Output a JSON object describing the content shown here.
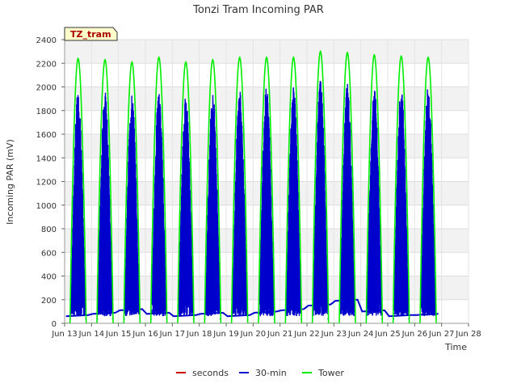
{
  "chart_data": {
    "type": "line",
    "title": "Tonzi Tram Incoming PAR",
    "xlabel": "Time",
    "ylabel": "Incoming PAR (mV)",
    "badge": "TZ_tram",
    "x_ticks": [
      "Jun 13",
      "Jun 14",
      "Jun 15",
      "Jun 16",
      "Jun 17",
      "Jun 18",
      "Jun 19",
      "Jun 20",
      "Jun 21",
      "Jun 22",
      "Jun 23",
      "Jun 24",
      "Jun 25",
      "Jun 26",
      "Jun 27",
      "Jun 28"
    ],
    "x_tick_values": [
      13,
      14,
      15,
      16,
      17,
      18,
      19,
      20,
      21,
      22,
      23,
      24,
      25,
      26,
      27,
      28
    ],
    "xlim": [
      13,
      28
    ],
    "ylim": [
      0,
      2400
    ],
    "y_ticks": [
      0,
      200,
      400,
      600,
      800,
      1000,
      1200,
      1400,
      1600,
      1800,
      2000,
      2200,
      2400
    ],
    "grid": true,
    "legend_position": "bottom",
    "series": [
      {
        "name": "seconds",
        "color": "#cc0000",
        "days": [],
        "peaks": []
      },
      {
        "name": "30-min",
        "color": "#0000cc",
        "days": [
          13,
          14,
          15,
          16,
          17,
          18,
          19,
          20,
          21,
          22,
          23,
          24,
          25,
          26
        ],
        "peaks": [
          1970,
          1960,
          1940,
          1960,
          1940,
          1960,
          1980,
          2010,
          2000,
          2060,
          2030,
          2010,
          2010,
          2010
        ],
        "night_level": [
          60,
          80,
          110,
          80,
          60,
          80,
          60,
          90,
          110,
          150,
          190,
          100,
          60,
          70
        ]
      },
      {
        "name": "Tower",
        "color": "#00ee00",
        "days": [
          13,
          14,
          15,
          16,
          17,
          18,
          19,
          20,
          21,
          22,
          23,
          24,
          25,
          26
        ],
        "peaks": [
          2240,
          2230,
          2210,
          2250,
          2210,
          2230,
          2250,
          2250,
          2250,
          2300,
          2290,
          2270,
          2260,
          2250
        ]
      }
    ]
  }
}
